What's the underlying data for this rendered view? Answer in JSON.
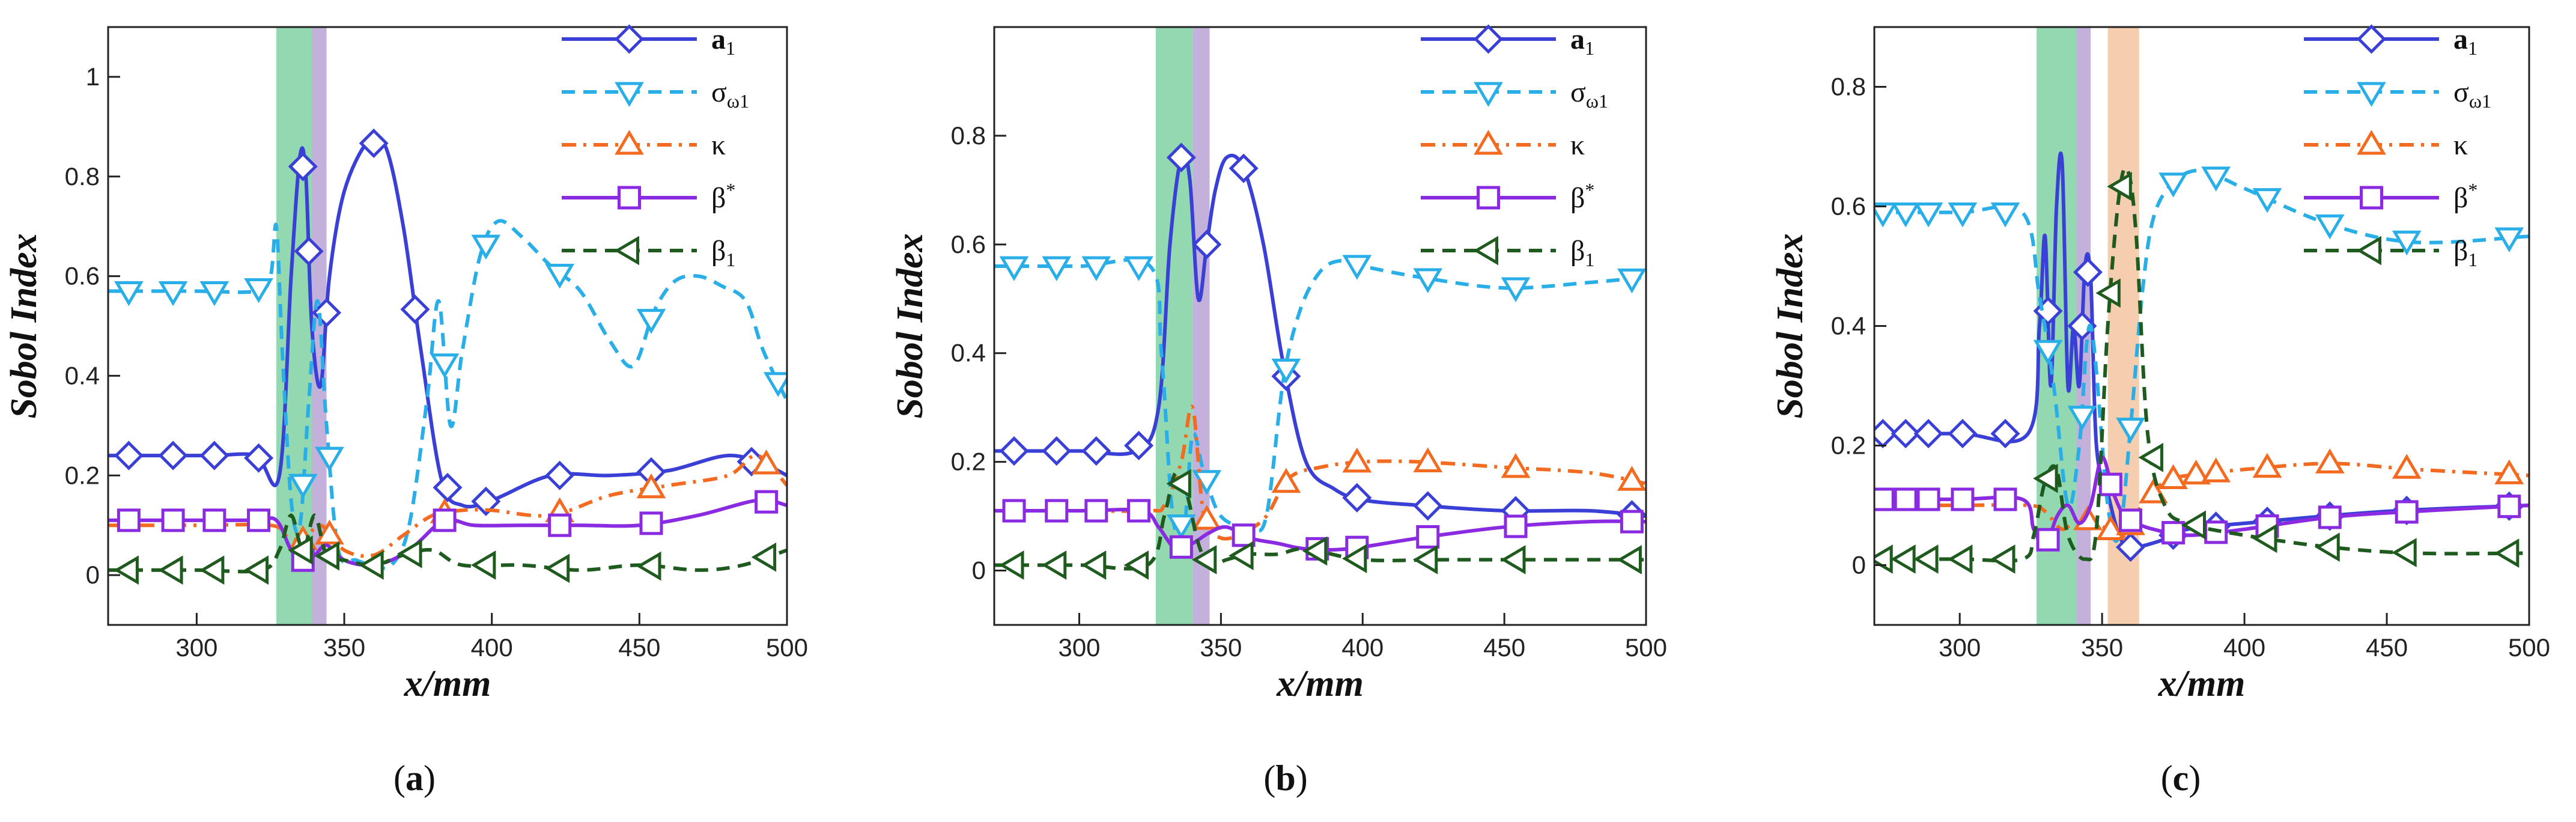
{
  "chart_data": [
    {
      "type": "line",
      "panel_label": "a",
      "xlabel": "x/mm",
      "ylabel": "Sobol Index",
      "xlim": [
        270,
        500
      ],
      "ylim": [
        -0.1,
        1.1
      ],
      "xticks": [
        "300",
        "350",
        "400",
        "450",
        "500"
      ],
      "yticks": [
        "0",
        "0.2",
        "0.4",
        "0.6",
        "0.8",
        "1"
      ],
      "legend_position": "top-right",
      "shaded_regions": [
        {
          "x0": 327,
          "x1": 339,
          "color": "#7fd1a3"
        },
        {
          "x0": 339,
          "x1": 344,
          "color": "#b9a3d6"
        }
      ],
      "series": [
        {
          "name": "a",
          "subscript": "1",
          "color": "#3a3fd6",
          "marker": "diamond",
          "dash": "solid",
          "x": [
            270,
            280,
            293,
            306,
            320,
            328,
            332,
            335,
            337,
            339,
            342,
            345,
            350,
            358,
            364,
            370,
            376,
            383,
            390,
            400,
            420,
            440,
            460,
            480,
            493,
            500
          ],
          "y": [
            0.24,
            0.24,
            0.24,
            0.24,
            0.24,
            0.2,
            0.6,
            0.84,
            0.8,
            0.5,
            0.38,
            0.6,
            0.77,
            0.87,
            0.86,
            0.7,
            0.45,
            0.19,
            0.14,
            0.15,
            0.2,
            0.2,
            0.21,
            0.24,
            0.22,
            0.2
          ],
          "marker_x": [
            277,
            292,
            306,
            321,
            336,
            338,
            344,
            360,
            374,
            385,
            398,
            423,
            454,
            488
          ]
        },
        {
          "name": "σ",
          "subscript": "ω1",
          "color": "#29aee8",
          "marker": "triangle-down",
          "dash": "dash",
          "x": [
            270,
            280,
            300,
            320,
            325,
            327,
            329,
            332,
            335,
            338,
            341,
            344,
            348,
            354,
            360,
            366,
            372,
            378,
            382,
            386,
            390,
            396,
            402,
            410,
            420,
            430,
            440,
            448,
            455,
            462,
            470,
            478,
            486,
            492,
            500
          ],
          "y": [
            0.57,
            0.57,
            0.57,
            0.57,
            0.6,
            0.7,
            0.45,
            0.15,
            0.1,
            0.35,
            0.55,
            0.3,
            0.05,
            0.03,
            0.02,
            0.02,
            0.1,
            0.35,
            0.55,
            0.3,
            0.45,
            0.64,
            0.71,
            0.68,
            0.62,
            0.57,
            0.47,
            0.42,
            0.53,
            0.59,
            0.6,
            0.58,
            0.55,
            0.45,
            0.35
          ],
          "marker_x": [
            277,
            292,
            306,
            321,
            336,
            345,
            384,
            398,
            423,
            454,
            497
          ]
        },
        {
          "name": "κ",
          "subscript": "",
          "color": "#f26b21",
          "marker": "triangle-up",
          "dash": "dashdot",
          "x": [
            270,
            300,
            325,
            330,
            336,
            342,
            350,
            360,
            370,
            380,
            390,
            400,
            420,
            440,
            460,
            480,
            490,
            500
          ],
          "y": [
            0.1,
            0.1,
            0.1,
            0.08,
            0.07,
            0.1,
            0.05,
            0.04,
            0.08,
            0.12,
            0.13,
            0.13,
            0.12,
            0.16,
            0.18,
            0.2,
            0.24,
            0.18
          ],
          "marker_x": [
            336,
            345,
            384,
            423,
            454,
            493
          ]
        },
        {
          "name": "β",
          "subscript": "",
          "sup": "*",
          "color": "#8a2be2",
          "marker": "square",
          "dash": "solid",
          "x": [
            270,
            300,
            320,
            327,
            332,
            336,
            340,
            344,
            350,
            358,
            366,
            374,
            384,
            394,
            410,
            430,
            450,
            470,
            490,
            500
          ],
          "y": [
            0.11,
            0.11,
            0.11,
            0.11,
            0.05,
            0.03,
            0.04,
            0.06,
            0.03,
            0.02,
            0.03,
            0.06,
            0.11,
            0.1,
            0.1,
            0.1,
            0.1,
            0.12,
            0.15,
            0.14
          ],
          "marker_x": [
            277,
            292,
            306,
            321,
            336,
            384,
            423,
            454,
            493
          ]
        },
        {
          "name": "β",
          "subscript": "1",
          "sup": "",
          "color": "#1f5a1f",
          "marker": "triangle-left",
          "dash": "dash",
          "x": [
            270,
            300,
            322,
            328,
            332,
            336,
            340,
            344,
            350,
            360,
            370,
            380,
            390,
            410,
            430,
            450,
            470,
            485,
            500
          ],
          "y": [
            0.01,
            0.01,
            0.01,
            0.05,
            0.12,
            0.05,
            0.12,
            0.04,
            0.03,
            0.02,
            0.04,
            0.05,
            0.02,
            0.02,
            0.01,
            0.02,
            0.01,
            0.02,
            0.05
          ],
          "marker_x": [
            277,
            292,
            306,
            321,
            336,
            345,
            360,
            373,
            398,
            423,
            454,
            493
          ]
        }
      ]
    },
    {
      "type": "line",
      "panel_label": "b",
      "xlabel": "x/mm",
      "ylabel": "Sobol Index",
      "xlim": [
        270,
        500
      ],
      "ylim": [
        -0.1,
        1.0
      ],
      "xticks": [
        "300",
        "350",
        "400",
        "450",
        "500"
      ],
      "yticks": [
        "0",
        "0.2",
        "0.4",
        "0.6",
        "0.8"
      ],
      "legend_position": "top-right",
      "shaded_regions": [
        {
          "x0": 327,
          "x1": 340,
          "color": "#7fd1a3"
        },
        {
          "x0": 340,
          "x1": 346,
          "color": "#b9a3d6"
        }
      ],
      "series": [
        {
          "name": "a",
          "subscript": "1",
          "color": "#3a3fd6",
          "marker": "diamond",
          "dash": "solid",
          "x": [
            270,
            280,
            300,
            320,
            328,
            332,
            336,
            339,
            342,
            345,
            348,
            352,
            358,
            365,
            372,
            380,
            390,
            400,
            420,
            450,
            480,
            500
          ],
          "y": [
            0.22,
            0.22,
            0.22,
            0.22,
            0.3,
            0.6,
            0.76,
            0.72,
            0.5,
            0.6,
            0.7,
            0.76,
            0.74,
            0.6,
            0.38,
            0.2,
            0.15,
            0.13,
            0.12,
            0.11,
            0.11,
            0.1
          ],
          "marker_x": [
            277,
            292,
            306,
            321,
            336,
            345,
            358,
            373,
            398,
            423,
            454,
            495
          ]
        },
        {
          "name": "σ",
          "subscript": "ω1",
          "color": "#29aee8",
          "marker": "triangle-down",
          "dash": "dash",
          "x": [
            270,
            300,
            325,
            329,
            333,
            337,
            340,
            344,
            350,
            360,
            366,
            372,
            378,
            385,
            392,
            400,
            420,
            450,
            480,
            500
          ],
          "y": [
            0.56,
            0.56,
            0.56,
            0.4,
            0.1,
            0.08,
            0.25,
            0.18,
            0.1,
            0.08,
            0.1,
            0.35,
            0.48,
            0.55,
            0.57,
            0.56,
            0.54,
            0.52,
            0.53,
            0.54
          ],
          "marker_x": [
            277,
            292,
            306,
            321,
            336,
            345,
            373,
            398,
            423,
            454,
            495
          ]
        },
        {
          "name": "κ",
          "subscript": "",
          "color": "#f26b21",
          "marker": "triangle-up",
          "dash": "dashdot",
          "x": [
            270,
            300,
            325,
            330,
            336,
            340,
            344,
            350,
            358,
            366,
            374,
            385,
            400,
            420,
            450,
            480,
            500
          ],
          "y": [
            0.11,
            0.11,
            0.11,
            0.12,
            0.2,
            0.3,
            0.1,
            0.06,
            0.07,
            0.1,
            0.17,
            0.19,
            0.2,
            0.2,
            0.19,
            0.18,
            0.16
          ],
          "marker_x": [
            345,
            373,
            398,
            423,
            454,
            495
          ]
        },
        {
          "name": "β",
          "subscript": "",
          "sup": "*",
          "color": "#8a2be2",
          "marker": "square",
          "dash": "solid",
          "x": [
            270,
            300,
            322,
            328,
            334,
            340,
            346,
            352,
            360,
            370,
            380,
            395,
            420,
            450,
            480,
            500
          ],
          "y": [
            0.11,
            0.11,
            0.11,
            0.08,
            0.04,
            0.05,
            0.07,
            0.08,
            0.06,
            0.05,
            0.04,
            0.04,
            0.06,
            0.08,
            0.09,
            0.09
          ],
          "marker_x": [
            277,
            292,
            306,
            321,
            336,
            358,
            384,
            398,
            423,
            454,
            495
          ]
        },
        {
          "name": "β",
          "subscript": "1",
          "sup": "",
          "color": "#1f5a1f",
          "marker": "triangle-left",
          "dash": "dash",
          "x": [
            270,
            300,
            324,
            330,
            334,
            338,
            342,
            346,
            352,
            360,
            370,
            380,
            400,
            430,
            460,
            500
          ],
          "y": [
            0.01,
            0.01,
            0.01,
            0.1,
            0.18,
            0.14,
            0.05,
            0.01,
            0.02,
            0.03,
            0.03,
            0.04,
            0.02,
            0.02,
            0.02,
            0.02
          ],
          "marker_x": [
            277,
            292,
            306,
            321,
            336,
            345,
            358,
            384,
            398,
            423,
            454,
            495
          ]
        }
      ]
    },
    {
      "type": "line",
      "panel_label": "c",
      "xlabel": "x/mm",
      "ylabel": "Sobol Index",
      "xlim": [
        270,
        500
      ],
      "ylim": [
        -0.1,
        0.9
      ],
      "xticks": [
        "300",
        "350",
        "400",
        "450",
        "500"
      ],
      "yticks": [
        "0",
        "0.2",
        "0.4",
        "0.6",
        "0.8"
      ],
      "legend_position": "top-right",
      "shaded_regions": [
        {
          "x0": 327,
          "x1": 341,
          "color": "#7fd1a3"
        },
        {
          "x0": 341,
          "x1": 346,
          "color": "#b9a3d6"
        },
        {
          "x0": 352,
          "x1": 363,
          "color": "#f2c6a0"
        }
      ],
      "series": [
        {
          "name": "a",
          "subscript": "1",
          "color": "#3a3fd6",
          "marker": "diamond",
          "dash": "solid",
          "x": [
            270,
            300,
            324,
            328,
            330,
            332,
            334,
            336,
            338,
            340,
            342,
            344,
            346,
            348,
            352,
            356,
            360,
            370,
            380,
            400,
            450,
            500
          ],
          "y": [
            0.22,
            0.22,
            0.22,
            0.4,
            0.55,
            0.3,
            0.6,
            0.67,
            0.3,
            0.4,
            0.3,
            0.5,
            0.48,
            0.2,
            0.12,
            0.05,
            0.03,
            0.04,
            0.06,
            0.07,
            0.09,
            0.1
          ],
          "marker_x": [
            273,
            281,
            289,
            301,
            316,
            331,
            343,
            345,
            360,
            375,
            390,
            408,
            430,
            457,
            493
          ]
        },
        {
          "name": "σ",
          "subscript": "ω1",
          "color": "#29aee8",
          "marker": "triangle-down",
          "dash": "dash",
          "x": [
            270,
            300,
            322,
            328,
            333,
            338,
            342,
            346,
            352,
            356,
            360,
            364,
            368,
            375,
            385,
            400,
            430,
            460,
            500
          ],
          "y": [
            0.59,
            0.59,
            0.59,
            0.45,
            0.3,
            0.1,
            0.2,
            0.4,
            0.1,
            0.05,
            0.23,
            0.45,
            0.58,
            0.64,
            0.66,
            0.63,
            0.57,
            0.54,
            0.55
          ],
          "marker_x": [
            273,
            281,
            289,
            301,
            316,
            331,
            343,
            360,
            375,
            390,
            408,
            430,
            457,
            493
          ]
        },
        {
          "name": "κ",
          "subscript": "",
          "color": "#f26b21",
          "marker": "triangle-up",
          "dash": "dashdot",
          "x": [
            270,
            300,
            324,
            330,
            336,
            342,
            348,
            352,
            358,
            364,
            372,
            380,
            400,
            430,
            460,
            500
          ],
          "y": [
            0.1,
            0.1,
            0.1,
            0.09,
            0.06,
            0.08,
            0.07,
            0.06,
            0.05,
            0.1,
            0.14,
            0.15,
            0.16,
            0.17,
            0.16,
            0.15
          ],
          "marker_x": [
            345,
            353,
            360,
            368,
            375,
            383,
            390,
            408,
            430,
            457,
            493
          ]
        },
        {
          "name": "β",
          "subscript": "",
          "sup": "*",
          "color": "#8a2be2",
          "marker": "square",
          "dash": "solid",
          "x": [
            270,
            300,
            322,
            326,
            330,
            334,
            338,
            342,
            346,
            350,
            354,
            358,
            362,
            368,
            380,
            400,
            430,
            460,
            500
          ],
          "y": [
            0.11,
            0.11,
            0.11,
            0.06,
            0.03,
            0.08,
            0.1,
            0.07,
            0.1,
            0.18,
            0.12,
            0.08,
            0.07,
            0.06,
            0.05,
            0.06,
            0.08,
            0.09,
            0.1
          ],
          "marker_x": [
            273,
            281,
            289,
            301,
            316,
            331,
            353,
            360,
            375,
            390,
            408,
            430,
            457,
            493
          ]
        },
        {
          "name": "β",
          "subscript": "1",
          "sup": "",
          "color": "#1f5a1f",
          "marker": "triangle-left",
          "dash": "dash",
          "x": [
            270,
            300,
            322,
            326,
            330,
            334,
            338,
            344,
            348,
            352,
            356,
            359,
            362,
            366,
            372,
            380,
            400,
            430,
            460,
            500
          ],
          "y": [
            0.01,
            0.01,
            0.01,
            0.05,
            0.14,
            0.16,
            0.05,
            0.01,
            0.06,
            0.4,
            0.62,
            0.66,
            0.55,
            0.22,
            0.1,
            0.07,
            0.05,
            0.03,
            0.02,
            0.02
          ],
          "marker_x": [
            273,
            281,
            289,
            301,
            316,
            331,
            353,
            357,
            368,
            383,
            408,
            430,
            457,
            493
          ]
        }
      ]
    }
  ]
}
